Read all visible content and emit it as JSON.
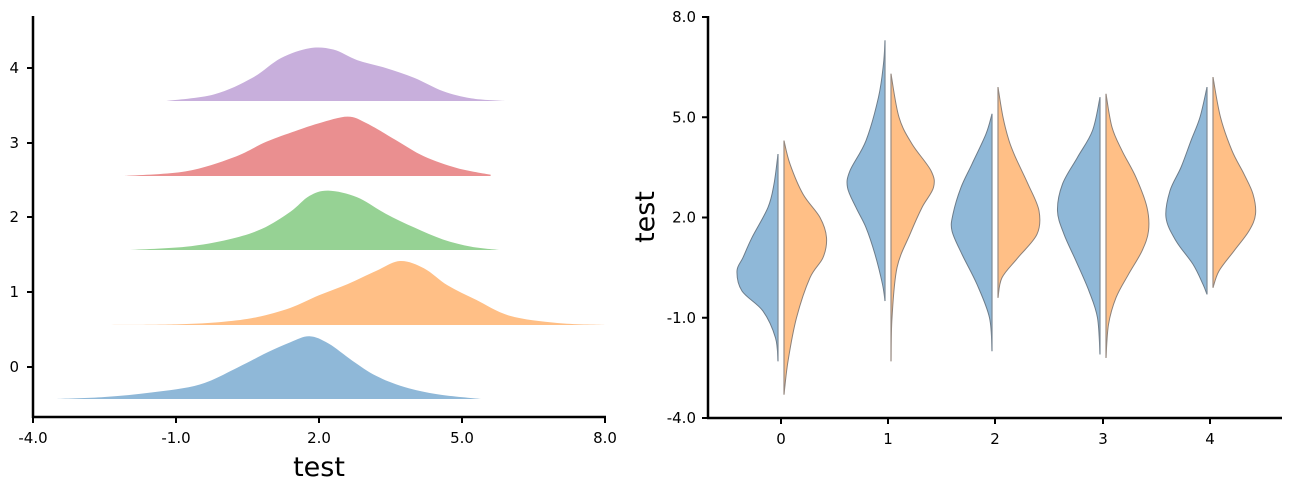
{
  "chart_data": [
    {
      "type": "ridgeline",
      "xlabel": "test",
      "ylabel": "",
      "xlim": [
        -4.0,
        8.0
      ],
      "xticks": [
        "-4.0",
        "-1.0",
        "2.0",
        "5.0",
        "8.0"
      ],
      "yticks": [
        "0",
        "1",
        "2",
        "3",
        "4"
      ],
      "series": [
        {
          "category": "0",
          "color": "#8fb8d8",
          "x": [
            -3.5,
            -2.5,
            -1.5,
            -0.5,
            0.3,
            0.9,
            1.4,
            1.8,
            2.2,
            2.7,
            3.2,
            3.8,
            4.5,
            5.4
          ],
          "density": [
            0.0,
            0.03,
            0.1,
            0.22,
            0.48,
            0.7,
            0.86,
            0.95,
            0.84,
            0.58,
            0.35,
            0.18,
            0.07,
            0.0
          ]
        },
        {
          "category": "1",
          "color": "#ffbf86",
          "x": [
            -2.5,
            -1.0,
            0.0,
            0.7,
            1.4,
            2.0,
            2.6,
            3.2,
            3.7,
            4.2,
            4.7,
            5.3,
            6.0,
            7.0,
            8.0
          ],
          "density": [
            0.0,
            0.01,
            0.05,
            0.12,
            0.26,
            0.45,
            0.62,
            0.82,
            0.97,
            0.86,
            0.6,
            0.38,
            0.14,
            0.03,
            0.0
          ]
        },
        {
          "category": "2",
          "color": "#96d294",
          "x": [
            -2.0,
            -0.8,
            0.1,
            0.8,
            1.4,
            1.8,
            2.2,
            2.8,
            3.4,
            4.0,
            4.6,
            5.2,
            5.8
          ],
          "density": [
            0.0,
            0.05,
            0.16,
            0.32,
            0.58,
            0.82,
            0.9,
            0.8,
            0.55,
            0.34,
            0.16,
            0.05,
            0.0
          ]
        },
        {
          "category": "3",
          "color": "#ea8f90",
          "x": [
            -2.1,
            -0.8,
            0.2,
            0.9,
            1.5,
            2.0,
            2.6,
            3.0,
            3.6,
            4.2,
            4.9,
            5.6
          ],
          "density": [
            0.0,
            0.07,
            0.28,
            0.52,
            0.68,
            0.8,
            0.9,
            0.8,
            0.55,
            0.3,
            0.12,
            0.02
          ]
        },
        {
          "category": "4",
          "color": "#c8afdc",
          "x": [
            -1.2,
            -0.2,
            0.6,
            1.2,
            1.8,
            2.3,
            2.8,
            3.4,
            4.0,
            4.6,
            5.2,
            5.9
          ],
          "density": [
            0.0,
            0.1,
            0.35,
            0.65,
            0.8,
            0.78,
            0.62,
            0.5,
            0.35,
            0.15,
            0.04,
            0.0
          ]
        }
      ]
    },
    {
      "type": "violin-split",
      "ylabel": "test",
      "xlabel": "",
      "ylim": [
        -4.0,
        8.0
      ],
      "yticks": [
        "-4.0",
        "-1.0",
        "2.0",
        "5.0",
        "8.0"
      ],
      "categories": [
        "0",
        "1",
        "2",
        "3",
        "4"
      ],
      "colors": {
        "left": "#8fb8d8",
        "right": "#ffbf86"
      },
      "series": [
        {
          "category": "0",
          "left": {
            "y": [
              -2.3,
              -1.6,
              -0.8,
              -0.2,
              0.4,
              0.8,
              1.4,
              2.3,
              3.0,
              3.9
            ],
            "width": [
              0.0,
              0.05,
              0.3,
              0.72,
              0.82,
              0.7,
              0.52,
              0.2,
              0.08,
              0.0
            ]
          },
          "right": {
            "y": [
              -3.3,
              -2.3,
              -1.0,
              0.2,
              0.8,
              1.4,
              2.0,
              2.7,
              3.6,
              4.3
            ],
            "width": [
              0.0,
              0.08,
              0.25,
              0.52,
              0.78,
              0.85,
              0.72,
              0.38,
              0.12,
              0.0
            ]
          }
        },
        {
          "category": "1",
          "left": {
            "y": [
              -0.5,
              0.0,
              0.9,
              1.7,
              2.3,
              2.9,
              3.4,
              4.3,
              5.6,
              6.6,
              7.3
            ],
            "width": [
              0.0,
              0.05,
              0.2,
              0.38,
              0.58,
              0.75,
              0.7,
              0.38,
              0.13,
              0.03,
              0.0
            ]
          },
          "right": {
            "y": [
              -2.3,
              -1.0,
              0.5,
              1.5,
              2.3,
              2.9,
              3.4,
              4.2,
              5.0,
              6.3
            ],
            "width": [
              0.0,
              0.02,
              0.12,
              0.38,
              0.62,
              0.85,
              0.8,
              0.42,
              0.16,
              0.0
            ]
          }
        },
        {
          "category": "2",
          "left": {
            "y": [
              -2.0,
              -1.0,
              0.0,
              0.9,
              1.6,
              2.1,
              2.9,
              3.6,
              4.5,
              5.1
            ],
            "width": [
              0.0,
              0.05,
              0.3,
              0.6,
              0.8,
              0.78,
              0.62,
              0.4,
              0.12,
              0.0
            ]
          },
          "right": {
            "y": [
              -0.4,
              0.2,
              0.8,
              1.5,
              2.2,
              3.0,
              3.8,
              4.3,
              5.0,
              5.9
            ],
            "width": [
              0.0,
              0.08,
              0.4,
              0.78,
              0.82,
              0.6,
              0.35,
              0.22,
              0.1,
              0.0
            ]
          }
        },
        {
          "category": "3",
          "left": {
            "y": [
              -2.1,
              -1.0,
              -0.2,
              0.7,
              1.5,
              2.2,
              3.0,
              3.8,
              4.6,
              5.6
            ],
            "width": [
              0.0,
              0.05,
              0.22,
              0.48,
              0.72,
              0.85,
              0.75,
              0.45,
              0.15,
              0.0
            ]
          },
          "right": {
            "y": [
              -2.2,
              -1.2,
              -0.4,
              0.3,
              1.0,
              1.6,
              2.3,
              3.2,
              4.0,
              4.7,
              5.7
            ],
            "width": [
              0.0,
              0.05,
              0.2,
              0.45,
              0.72,
              0.85,
              0.82,
              0.6,
              0.32,
              0.12,
              0.0
            ]
          }
        },
        {
          "category": "4",
          "left": {
            "y": [
              -0.3,
              0.0,
              0.6,
              1.3,
              2.0,
              2.8,
              3.5,
              4.3,
              5.0,
              5.9
            ],
            "width": [
              0.0,
              0.08,
              0.28,
              0.62,
              0.82,
              0.74,
              0.52,
              0.32,
              0.14,
              0.0
            ]
          },
          "right": {
            "y": [
              -0.1,
              0.4,
              1.0,
              1.6,
              2.1,
              2.7,
              3.3,
              4.0,
              5.0,
              6.2
            ],
            "width": [
              0.0,
              0.12,
              0.42,
              0.72,
              0.85,
              0.8,
              0.62,
              0.38,
              0.15,
              0.0
            ]
          }
        }
      ]
    }
  ]
}
